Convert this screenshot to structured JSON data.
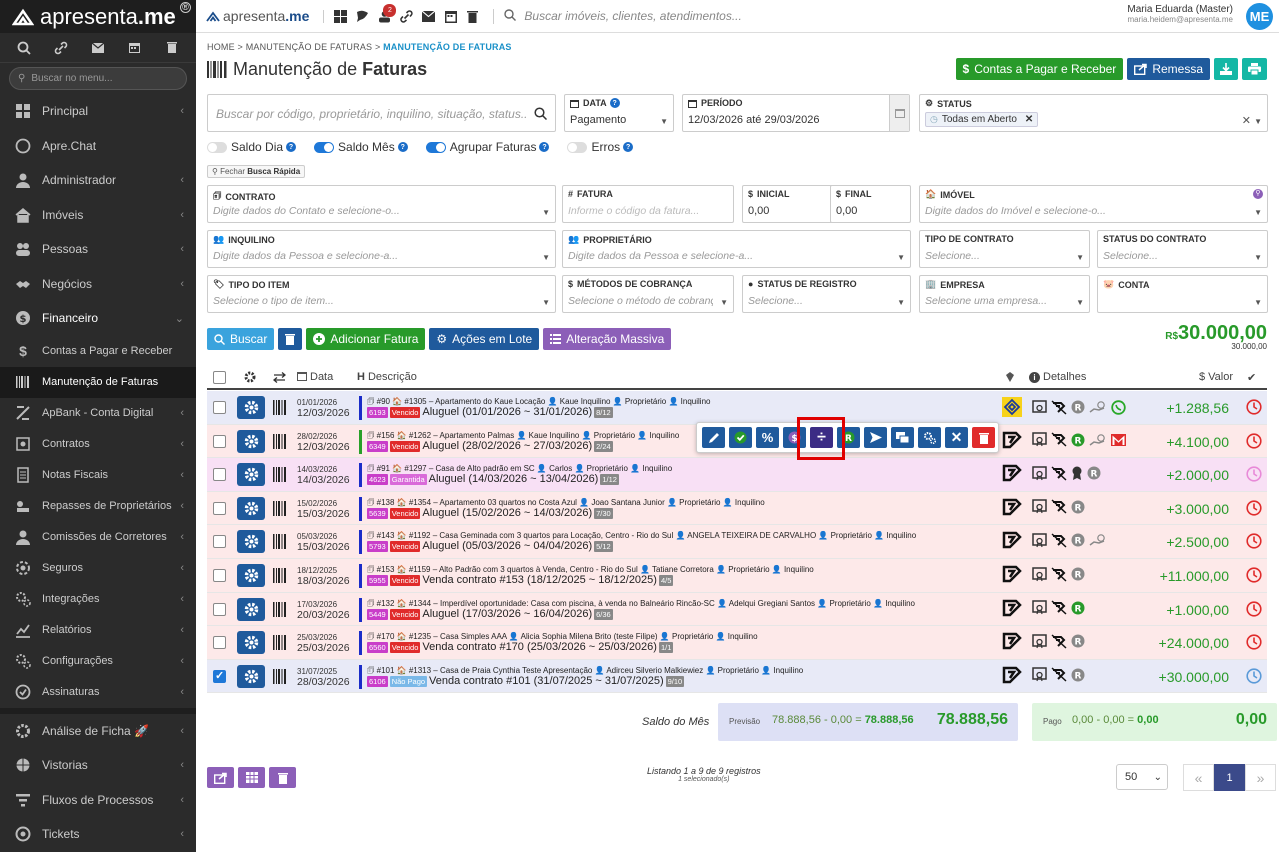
{
  "app": {
    "logo_text_1": "apresenta",
    "logo_text_2": ".me"
  },
  "sidebar": {
    "search_placeholder": "Buscar no menu...",
    "items": [
      {
        "label": "Principal",
        "icon": "dashboard-icon",
        "chev": true
      },
      {
        "label": "Apre.Chat",
        "icon": "whatsapp-icon",
        "chev": false
      },
      {
        "label": "Administrador",
        "icon": "user-icon",
        "chev": true
      },
      {
        "label": "Imóveis",
        "icon": "home-icon",
        "chev": true
      },
      {
        "label": "Pessoas",
        "icon": "people-icon",
        "chev": true
      },
      {
        "label": "Negócios",
        "icon": "handshake-icon",
        "chev": true
      },
      {
        "label": "Financeiro",
        "icon": "dollar-icon",
        "chev": "down"
      }
    ],
    "sub_items": [
      {
        "label": "Contas a Pagar e Receber",
        "icon": "dollar-icon"
      },
      {
        "label": "Manutenção de Faturas",
        "icon": "barcode-icon",
        "active": true
      },
      {
        "label": "ApBank - Conta Digital",
        "icon": "bank-icon",
        "chev": true
      },
      {
        "label": "Contratos",
        "icon": "contract-icon",
        "chev": true
      },
      {
        "label": "Notas Fiscais",
        "icon": "invoice-icon",
        "chev": true
      },
      {
        "label": "Repasses de Proprietários",
        "icon": "transfer-icon",
        "chev": true
      },
      {
        "label": "Comissões de Corretores",
        "icon": "commission-icon",
        "chev": true
      },
      {
        "label": "Seguros",
        "icon": "insurance-icon",
        "chev": true
      },
      {
        "label": "Integrações",
        "icon": "cogs-icon",
        "chev": true
      },
      {
        "label": "Relatórios",
        "icon": "chart-icon",
        "chev": true
      },
      {
        "label": "Configurações",
        "icon": "cogs-icon",
        "chev": true
      },
      {
        "label": "Assinaturas",
        "icon": "signature-icon",
        "chev": true
      }
    ],
    "items2": [
      {
        "label": "Análise de Ficha 🚀",
        "icon": "gear-icon",
        "chev": true
      },
      {
        "label": "Vistorias",
        "icon": "globe-icon",
        "chev": true
      },
      {
        "label": "Fluxos de Processos",
        "icon": "flow-icon",
        "chev": true
      },
      {
        "label": "Tickets",
        "icon": "ticket-icon",
        "chev": true
      }
    ]
  },
  "topbar": {
    "search_placeholder": "Buscar imóveis, clientes, atendimentos...",
    "badge": "2",
    "user_name": "Maria Eduarda (Master)",
    "user_email": "maria.heidem@apresenta.me",
    "avatar": "ME"
  },
  "page": {
    "breadcrumb": [
      "HOME",
      "MANUTENÇÃO DE FATURAS",
      "MANUTENÇÃO DE FATURAS"
    ],
    "title_1": "Manutenção de",
    "title_2": "Faturas",
    "btn_contas": "Contas a Pagar e Receber",
    "btn_remessa": "Remessa"
  },
  "filters": {
    "search_placeholder": "Buscar por código, proprietário, inquilino, situação, status...",
    "data_label": "DATA",
    "data_value": "Pagamento",
    "periodo_label": "PERÍODO",
    "periodo_value": "12/03/2026 até 29/03/2026",
    "status_label": "STATUS",
    "status_value": "Todas em Aberto",
    "toggles": [
      {
        "label": "Saldo Dia",
        "on": false
      },
      {
        "label": "Saldo Mês",
        "on": true
      },
      {
        "label": "Agrupar Faturas",
        "on": true
      },
      {
        "label": "Erros",
        "on": false
      }
    ],
    "quick_prefix": "Fechar",
    "quick_label": "Busca Rápida",
    "contrato_label": "CONTRATO",
    "contrato_ph": "Digite dados do Contato e selecione-o...",
    "fatura_label": "FATURA",
    "fatura_ph": "Informe o código da fatura...",
    "inicial_label": "INICIAL",
    "inicial_value": "0,00",
    "final_label": "FINAL",
    "final_value": "0,00",
    "imovel_label": "IMÓVEL",
    "imovel_ph": "Digite dados do Imóvel e selecione-o...",
    "inquilino_label": "INQUILINO",
    "inquilino_ph": "Digite dados da Pessoa e selecione-a...",
    "proprietario_label": "PROPRIETÁRIO",
    "proprietario_ph": "Digite dados da Pessoa e selecione-a...",
    "tipo_contrato_label": "TIPO DE CONTRATO",
    "tipo_contrato_ph": "Selecione...",
    "status_contrato_label": "STATUS DO CONTRATO",
    "status_contrato_ph": "Selecione...",
    "tipo_item_label": "TIPO DO ITEM",
    "tipo_item_ph": "Selecione o tipo de item...",
    "metodos_label": "MÉTODOS DE COBRANÇA",
    "metodos_ph": "Selecione o método de cobrança...",
    "status_registro_label": "STATUS DE REGISTRO",
    "status_registro_ph": "Selecione...",
    "empresa_label": "EMPRESA",
    "empresa_ph": "Selecione uma empresa...",
    "conta_label": "CONTA"
  },
  "actions": {
    "buscar": "Buscar",
    "adicionar": "Adicionar Fatura",
    "acoes_lote": "Ações em Lote",
    "alteracao": "Alteração Massiva",
    "total_prefix": "R$",
    "total_value": "30.000,00",
    "total_sub": "30.000,00"
  },
  "table": {
    "headers": {
      "data": "Data",
      "descricao": "Descrição",
      "detalhes": "Detalhes",
      "valor": "Valor"
    },
    "rows": [
      {
        "d1": "01/01/2026",
        "d2": "12/03/2026",
        "line1": "🗊 #90  🏠 #1305 – Apartamento do Kaue Locação  👤 Kaue Inquilino  👤 Proprietário  👤 Inquilino",
        "num": "6193",
        "status": "Vencido",
        "status_type": "ven",
        "desc": "Aluguel (01/01/2026 ~ 31/01/2026)",
        "parc": "8/12",
        "value": "+1.288,56",
        "bg": "#e8eaf7",
        "stripe": "#1a2cc8",
        "checked": false
      },
      {
        "d1": "28/02/2026",
        "d2": "12/03/2026",
        "line1": "🗊 #156  🏠 #1262 – Apartamento Palmas  👤 Kaue Inquilino  👤 Proprietário  👤 Inquilino",
        "num": "6349",
        "status": "Vencido",
        "status_type": "ven",
        "desc": "Aluguel (28/02/2026 ~ 27/03/2026)",
        "parc": "2/24",
        "value": "+4.100,00",
        "bg": "#fde9e9",
        "stripe": "#28a028",
        "checked": false
      },
      {
        "d1": "14/03/2026",
        "d2": "14/03/2026",
        "line1": "🗊 #91  🏠 #1297 – Casa de Alto padrão em SC  👤 Carlos  👤 Proprietário  👤 Inquilino",
        "num": "4623",
        "status": "Garantida",
        "status_type": "gar",
        "desc": "Aluguel (14/03/2026 ~ 13/04/2026)",
        "parc": "1/12",
        "value": "+2.000,00",
        "bg": "#f8e0f5",
        "stripe": "#1a2cc8",
        "checked": false
      },
      {
        "d1": "15/02/2026",
        "d2": "15/03/2026",
        "line1": "🗊 #138  🏠 #1354 – Apartamento 03 quartos no Costa Azul  👤 Joao Santana Junior  👤 Proprietário  👤 Inquilino",
        "num": "5639",
        "status": "Vencido",
        "status_type": "ven",
        "desc": "Aluguel (15/02/2026 ~ 14/03/2026)",
        "parc": "7/30",
        "value": "+3.000,00",
        "bg": "#fde9e9",
        "stripe": "#1a2cc8",
        "checked": false
      },
      {
        "d1": "05/03/2026",
        "d2": "15/03/2026",
        "line1": "🗊 #143  🏠 #1192 – Casa Geminada com 3 quartos para Locação, Centro - Rio do Sul  👤 ANGELA TEIXEIRA DE CARVALHO  👤 Proprietário  👤 Inquilino",
        "num": "5793",
        "status": "Vencido",
        "status_type": "ven",
        "desc": "Aluguel (05/03/2026 ~ 04/04/2026)",
        "parc": "5/12",
        "value": "+2.500,00",
        "bg": "#fde9e9",
        "stripe": "#1a2cc8",
        "checked": false
      },
      {
        "d1": "18/12/2025",
        "d2": "18/03/2026",
        "line1": "🗊 #153  🏠 #1159 – Alto Padrão com 3 quartos à Venda, Centro - Rio do Sul  👤 Tatiane Corretora  👤 Proprietário  👤 Inquilino",
        "num": "5955",
        "status": "Vencido",
        "status_type": "ven",
        "desc": "Venda contrato #153 (18/12/2025 ~ 18/12/2025)",
        "parc": "4/5",
        "value": "+11.000,00",
        "bg": "#fde9e9",
        "stripe": "#1a2cc8",
        "checked": false
      },
      {
        "d1": "17/03/2026",
        "d2": "20/03/2026",
        "line1": "🗊 #132  🏠 #1344 – Imperdível oportunidade: Casa com piscina, à venda no Balneário Rincão-SC  👤 Adelqui Gregiani Santos  👤 Proprietário  👤 Inquilino",
        "num": "5449",
        "status": "Vencido",
        "status_type": "ven",
        "desc": "Aluguel (17/03/2026 ~ 16/04/2026)",
        "parc": "6/36",
        "value": "+1.000,00",
        "bg": "#fde9e9",
        "stripe": "#1a2cc8",
        "checked": false
      },
      {
        "d1": "25/03/2026",
        "d2": "25/03/2026",
        "line1": "🗊 #170  🏠 #1235 – Casa Simples AAA  👤 Alicia Sophia Milena Brito (teste Filipe)  👤 Proprietário  👤 Inquilino",
        "num": "6560",
        "status": "Vencido",
        "status_type": "ven",
        "desc": "Venda contrato #170 (25/03/2026 ~ 25/03/2026)",
        "parc": "1/1",
        "value": "+24.000,00",
        "bg": "#fde9e9",
        "stripe": "#1a2cc8",
        "checked": false
      },
      {
        "d1": "31/07/2025",
        "d2": "28/03/2026",
        "line1": "🗊 #101  🏠 #1313 – Casa de Praia Cynthia Teste Apresentação  👤 Adirceu Silverio Malkiewiez  👤 Proprietário  👤 Inquilino",
        "num": "6106",
        "status": "Não Pago",
        "status_type": "np",
        "desc": "Venda contrato #101 (31/07/2025 ~ 31/07/2025)",
        "parc": "9/10",
        "value": "+30.000,00",
        "bg": "#e8eaf7",
        "stripe": "#1a2cc8",
        "checked": true
      }
    ]
  },
  "summary": {
    "label": "Saldo do Mês",
    "previsao_label": "Previsão",
    "previsao_a": "78.888,56",
    "previsao_b": "0,00",
    "previsao_c": "78.888,56",
    "previsao_total": "78.888,56",
    "pago_label": "Pago",
    "pago_a": "0,00",
    "pago_b": "0,00",
    "pago_c": "0,00",
    "pago_total": "0,00"
  },
  "footer": {
    "listing": "Listando 1 a 9 de 9 registros",
    "selected": "1 selecionado(s)",
    "per_page": "50",
    "page": "1"
  }
}
